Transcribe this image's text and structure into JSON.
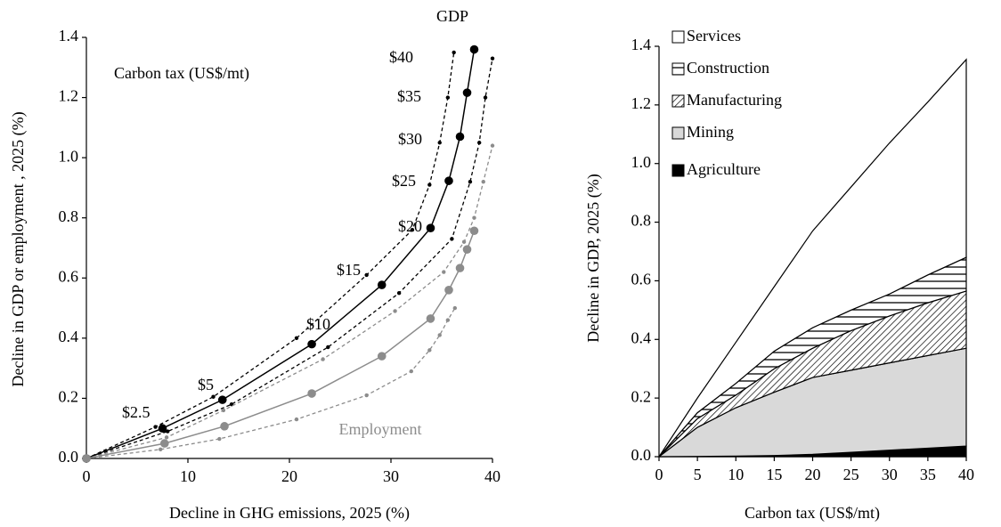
{
  "chart_data": [
    {
      "type": "line",
      "x_label": "Decline in GHG emissions, 2025 (%)",
      "y_label": "Decline in GDP or employment , 2025 (%)",
      "annotations": [
        "Carbon tax (US$/mt)",
        "$2.5",
        "$5",
        "$10",
        "$15",
        "$20",
        "$25",
        "$30",
        "$35",
        "$40"
      ],
      "xlim": [
        0,
        40
      ],
      "xticks": [
        0,
        10,
        20,
        30,
        40
      ],
      "ylim": [
        0,
        1.4
      ],
      "yticks": [
        {
          "value": 0,
          "label": "0.0"
        },
        0.2,
        0.4,
        0.6,
        0.8,
        {
          "value": 1,
          "label": "1.0"
        },
        1.2,
        1.4
      ],
      "series": [
        {
          "name": "GDP",
          "color": "#000000",
          "dashed": false,
          "x": [
            0,
            7.5,
            13.4,
            22.2,
            29.1,
            33.9,
            35.7,
            36.8,
            37.5,
            38.2
          ],
          "values": [
            0,
            0.1,
            0.195,
            0.38,
            0.577,
            0.766,
            0.923,
            1.07,
            1.216,
            1.36
          ]
        },
        {
          "color": "#000000",
          "dashed": true,
          "x": [
            0,
            6.8,
            12.5,
            20.7,
            27.6,
            32.1,
            33.8,
            34.8,
            35.6,
            36.2
          ],
          "values": [
            0,
            0.105,
            0.205,
            0.4,
            0.61,
            0.76,
            0.91,
            1.05,
            1.2,
            1.35
          ]
        },
        {
          "color": "#000000",
          "dashed": true,
          "x": [
            0,
            8,
            14.3,
            23.8,
            30.8,
            36,
            37.8,
            38.7,
            39.3,
            40
          ],
          "values": [
            0,
            0.09,
            0.18,
            0.37,
            0.55,
            0.73,
            0.92,
            1.05,
            1.2,
            1.33
          ]
        },
        {
          "name": "Employment",
          "color": "#8c8c8c",
          "dashed": false,
          "x": [
            0,
            7.7,
            13.6,
            22.2,
            29.1,
            33.9,
            35.7,
            36.8,
            37.5,
            38.2
          ],
          "values": [
            0,
            0.05,
            0.107,
            0.216,
            0.34,
            0.465,
            0.56,
            0.633,
            0.695,
            0.757
          ]
        },
        {
          "color": "#8c8c8c",
          "dashed": true,
          "x": [
            0,
            7.9,
            13.5,
            23.3,
            30.4,
            35.2,
            37.2,
            38.2,
            39.1,
            40
          ],
          "values": [
            0,
            0.07,
            0.16,
            0.33,
            0.49,
            0.62,
            0.72,
            0.8,
            0.92,
            1.04
          ]
        },
        {
          "color": "#8c8c8c",
          "dashed": true,
          "x": [
            0,
            7.3,
            13.1,
            20.7,
            27.6,
            32,
            33.8,
            34.8,
            35.6,
            36.3
          ],
          "values": [
            0,
            0.03,
            0.065,
            0.13,
            0.21,
            0.29,
            0.36,
            0.41,
            0.46,
            0.5
          ]
        }
      ]
    },
    {
      "type": "area",
      "stacked": true,
      "x_label": "Carbon tax (US$/mt)",
      "y_label": "Decline in GDP, 2025 (%)",
      "x": [
        0,
        5,
        10,
        15,
        20,
        25,
        30,
        35,
        40
      ],
      "xlim": [
        0,
        40
      ],
      "xticks": [
        0,
        5,
        10,
        15,
        20,
        25,
        30,
        35,
        40
      ],
      "ylim": [
        0,
        1.4
      ],
      "yticks": [
        {
          "value": 0,
          "label": "0.0"
        },
        0.2,
        0.4,
        0.6,
        0.8,
        {
          "value": 1,
          "label": "1.0"
        },
        1.2,
        1.4
      ],
      "series": [
        {
          "name": "Agriculture",
          "color": "#000000",
          "values": [
            0,
            0.001,
            0.002,
            0.004,
            0.008,
            0.015,
            0.022,
            0.029,
            0.036
          ]
        },
        {
          "name": "Mining",
          "color": "#d9d9d9",
          "values": [
            0,
            0.099,
            0.165,
            0.216,
            0.262,
            0.28,
            0.298,
            0.316,
            0.334
          ]
        },
        {
          "name": "Manufacturing",
          "color": "#000000",
          "pattern": "diagonal",
          "values": [
            0,
            0.03,
            0.043,
            0.08,
            0.1,
            0.135,
            0.16,
            0.18,
            0.195
          ]
        },
        {
          "name": "Construction",
          "color": "#000000",
          "pattern": "horizontal",
          "values": [
            0,
            0.02,
            0.04,
            0.06,
            0.07,
            0.07,
            0.075,
            0.095,
            0.115
          ]
        },
        {
          "name": "Services",
          "color": "#ffffff",
          "values": [
            0,
            0.05,
            0.14,
            0.22,
            0.33,
            0.42,
            0.515,
            0.59,
            0.675
          ]
        }
      ]
    }
  ]
}
